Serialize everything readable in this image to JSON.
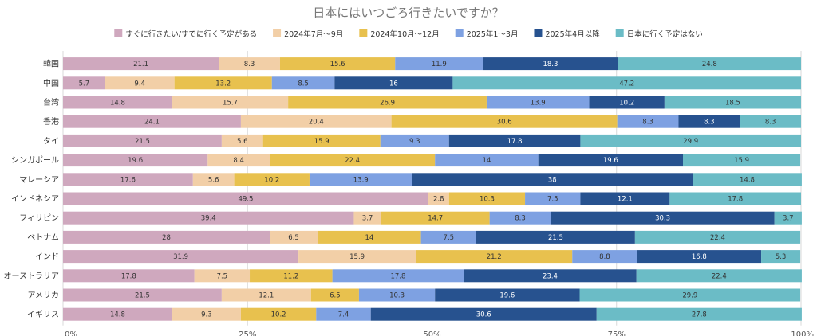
{
  "chart_data": {
    "type": "bar",
    "orientation": "horizontal",
    "stacked": true,
    "title": "日本にはいつごろ行きたいですか？",
    "legend_position": "top",
    "categories": [
      "韓国",
      "中国",
      "台湾",
      "香港",
      "タイ",
      "シンガポール",
      "マレーシア",
      "インドネシア",
      "フィリピン",
      "ベトナム",
      "インド",
      "オーストラリア",
      "アメリカ",
      "イギリス"
    ],
    "series": [
      {
        "name": "すぐに行きたい/すでに行く予定がある",
        "color": "#cfa8be",
        "values": [
          21.1,
          5.7,
          14.8,
          24.1,
          21.5,
          19.6,
          17.6,
          49.5,
          39.4,
          28,
          31.9,
          17.8,
          21.5,
          14.8
        ]
      },
      {
        "name": "2024年7月〜9月",
        "color": "#f2cfa7",
        "values": [
          8.3,
          9.4,
          15.7,
          20.4,
          5.6,
          8.4,
          5.6,
          2.8,
          3.7,
          6.5,
          15.9,
          7.5,
          12.1,
          9.3
        ]
      },
      {
        "name": "2024年10月〜12月",
        "color": "#e8c14e",
        "values": [
          15.6,
          13.2,
          26.9,
          30.6,
          15.9,
          22.4,
          10.2,
          10.3,
          14.7,
          14,
          21.2,
          11.2,
          6.5,
          10.2
        ]
      },
      {
        "name": "2025年1〜3月",
        "color": "#7ea1e2",
        "values": [
          11.9,
          8.5,
          13.9,
          8.3,
          9.3,
          14,
          13.9,
          7.5,
          8.3,
          7.5,
          8.8,
          17.8,
          10.3,
          7.4
        ]
      },
      {
        "name": "2025年4月以降",
        "color": "#27528f",
        "values": [
          18.3,
          16,
          10.2,
          8.3,
          17.8,
          19.6,
          38,
          12.1,
          30.3,
          21.5,
          16.8,
          23.4,
          19.6,
          30.6
        ]
      },
      {
        "name": "日本に行く予定はない",
        "color": "#6bbcc6",
        "values": [
          24.8,
          47.2,
          18.5,
          8.3,
          29.9,
          15.9,
          14.8,
          17.8,
          3.7,
          22.4,
          5.3,
          22.4,
          29.9,
          27.8
        ]
      }
    ],
    "label_colors": [
      "#333333",
      "#333333",
      "#333333",
      "#333333",
      "#ffffff",
      "#333333"
    ],
    "x_ticks": [
      0,
      25,
      50,
      75,
      100
    ],
    "x_tick_labels": [
      "0%",
      "25%",
      "50%",
      "75%",
      "100%"
    ],
    "xlim": [
      0,
      100
    ],
    "grid": true
  }
}
